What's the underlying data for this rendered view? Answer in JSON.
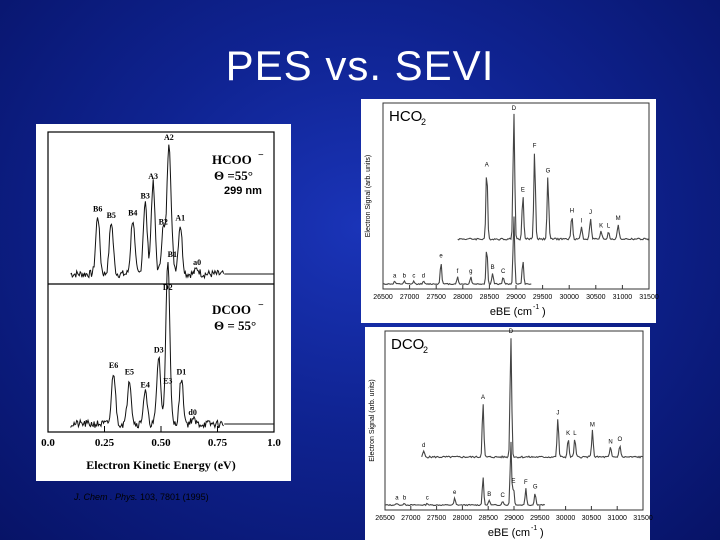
{
  "slide": {
    "title": "PES vs. SEVI",
    "citation_journal": "J. Chem . Phys.",
    "citation_ref": " 103, 7801 (1995)"
  },
  "chart_data": [
    {
      "type": "line",
      "panel": "left",
      "xlabel": "Electron Kinetic Energy (eV)",
      "xlim": [
        0.0,
        1.0
      ],
      "x_ticks": [
        "0.0",
        "0.25",
        "0.50",
        "0.75",
        "1.0"
      ],
      "subplots": [
        {
          "species": "HCOO",
          "species_suffix": "−",
          "angle_label": "Θ =55°",
          "wavelength_label": "299 nm",
          "peaks": [
            {
              "label": "B6",
              "x": 0.22,
              "rel": 0.45
            },
            {
              "label": "B5",
              "x": 0.28,
              "rel": 0.4
            },
            {
              "label": "B4",
              "x": 0.375,
              "rel": 0.42
            },
            {
              "label": "B3",
              "x": 0.43,
              "rel": 0.55
            },
            {
              "label": "A3",
              "x": 0.465,
              "rel": 0.7
            },
            {
              "label": "B2",
              "x": 0.51,
              "rel": 0.35
            },
            {
              "label": "A2",
              "x": 0.535,
              "rel": 1.0
            },
            {
              "label": "B1",
              "x": 0.55,
              "rel": 0.1
            },
            {
              "label": "A1",
              "x": 0.585,
              "rel": 0.38
            },
            {
              "label": "a0",
              "x": 0.66,
              "rel": 0.04
            }
          ]
        },
        {
          "species": "DCOO",
          "species_suffix": "−",
          "angle_label": "Θ = 55°",
          "peaks": [
            {
              "label": "E6",
              "x": 0.29,
              "rel": 0.4
            },
            {
              "label": "E5",
              "x": 0.36,
              "rel": 0.35
            },
            {
              "label": "E4",
              "x": 0.43,
              "rel": 0.25
            },
            {
              "label": "D3",
              "x": 0.49,
              "rel": 0.52
            },
            {
              "label": "E3",
              "x": 0.53,
              "rel": 0.28
            },
            {
              "label": "D2",
              "x": 0.53,
              "rel": 1.0
            },
            {
              "label": "D1",
              "x": 0.59,
              "rel": 0.35
            },
            {
              "label": "d0",
              "x": 0.64,
              "rel": 0.04
            }
          ]
        }
      ]
    },
    {
      "type": "line",
      "panel": "right-top",
      "species": "HCO",
      "species_sub": "2",
      "ylabel": "Electron Signal (arb. units)",
      "xlabel_main": "eBE (cm",
      "xlabel_sup": "-1",
      "xlabel_end": ")",
      "xlim": [
        26500,
        31500
      ],
      "x_ticks": [
        "26500",
        "27000",
        "27500",
        "28000",
        "28500",
        "29000",
        "29500",
        "30000",
        "30500",
        "31000",
        "31500"
      ],
      "upper_trace_peaks": [
        {
          "label": "A",
          "x": 28450,
          "rel": 0.55
        },
        {
          "label": "D",
          "x": 28960,
          "rel": 1.0
        },
        {
          "label": "E",
          "x": 29130,
          "rel": 0.35
        },
        {
          "label": "F",
          "x": 29350,
          "rel": 0.7
        },
        {
          "label": "G",
          "x": 29600,
          "rel": 0.5
        },
        {
          "label": "H",
          "x": 30050,
          "rel": 0.18
        },
        {
          "label": "I",
          "x": 30230,
          "rel": 0.1
        },
        {
          "label": "J",
          "x": 30400,
          "rel": 0.17
        },
        {
          "label": "K",
          "x": 30600,
          "rel": 0.06
        },
        {
          "label": "L",
          "x": 30740,
          "rel": 0.06
        },
        {
          "label": "M",
          "x": 30920,
          "rel": 0.12
        }
      ],
      "lower_trace_peaks": [
        {
          "label": "a",
          "x": 26720,
          "rel": 0.03
        },
        {
          "label": "b",
          "x": 26900,
          "rel": 0.03
        },
        {
          "label": "c",
          "x": 27080,
          "rel": 0.03
        },
        {
          "label": "d",
          "x": 27260,
          "rel": 0.03
        },
        {
          "label": "e",
          "x": 27590,
          "rel": 0.25
        },
        {
          "label": "f",
          "x": 27900,
          "rel": 0.08
        },
        {
          "label": "g",
          "x": 28150,
          "rel": 0.08
        },
        {
          "label": "B",
          "x": 28560,
          "rel": 0.12
        },
        {
          "label": "C",
          "x": 28760,
          "rel": 0.08
        }
      ]
    },
    {
      "type": "line",
      "panel": "right-bottom",
      "species": "DCO",
      "species_sub": "2",
      "ylabel": "Electron Signal (arb. units)",
      "xlabel_main": "eBE (cm",
      "xlabel_sup": "-1",
      "xlabel_end": ")",
      "xlim": [
        26500,
        31500
      ],
      "x_ticks": [
        "26500",
        "27000",
        "27500",
        "28000",
        "28500",
        "29000",
        "29500",
        "30000",
        "30500",
        "31000",
        "31500"
      ],
      "upper_trace_peaks": [
        {
          "label": "A",
          "x": 28400,
          "rel": 0.45
        },
        {
          "label": "D",
          "x": 28940,
          "rel": 1.0
        },
        {
          "label": "J",
          "x": 29850,
          "rel": 0.32
        },
        {
          "label": "K",
          "x": 30050,
          "rel": 0.15
        },
        {
          "label": "L",
          "x": 30180,
          "rel": 0.15
        },
        {
          "label": "M",
          "x": 30520,
          "rel": 0.22
        },
        {
          "label": "N",
          "x": 30870,
          "rel": 0.08
        },
        {
          "label": "O",
          "x": 31050,
          "rel": 0.1
        },
        {
          "label": "d",
          "x": 27250,
          "rel": 0.05
        }
      ],
      "lower_trace_peaks": [
        {
          "label": "a",
          "x": 26730,
          "rel": 0.02
        },
        {
          "label": "b",
          "x": 26880,
          "rel": 0.02
        },
        {
          "label": "c",
          "x": 27320,
          "rel": 0.02
        },
        {
          "label": "e",
          "x": 27850,
          "rel": 0.08
        },
        {
          "label": "B",
          "x": 28520,
          "rel": 0.06
        },
        {
          "label": "C",
          "x": 28780,
          "rel": 0.05
        },
        {
          "label": "E",
          "x": 28990,
          "rel": 0.22
        },
        {
          "label": "F",
          "x": 29230,
          "rel": 0.2
        },
        {
          "label": "G",
          "x": 29410,
          "rel": 0.15
        }
      ]
    }
  ]
}
